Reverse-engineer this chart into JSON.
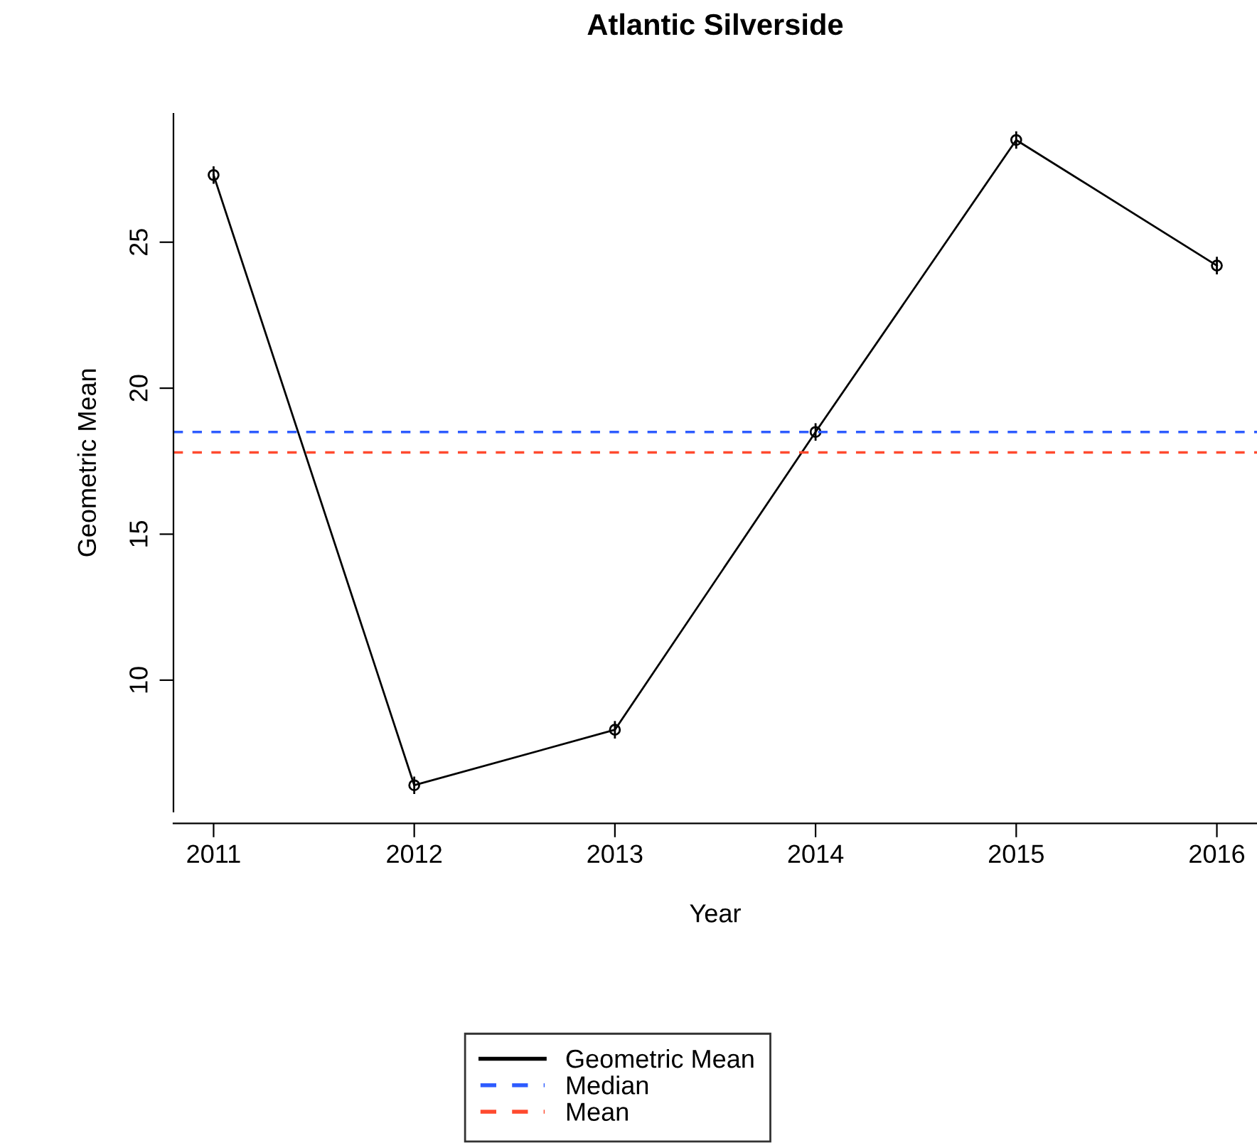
{
  "chart_data": {
    "type": "line",
    "title": "Atlantic Silverside",
    "xlabel": "Year",
    "ylabel": "Geometric Mean",
    "x": [
      2011,
      2012,
      2013,
      2014,
      2015,
      2016
    ],
    "series": [
      {
        "name": "Geometric Mean",
        "color": "#000000",
        "values": [
          27.3,
          6.4,
          8.3,
          18.5,
          28.5,
          24.2
        ],
        "errors": [
          0.3,
          0.3,
          0.3,
          0.3,
          0.3,
          0.3
        ]
      }
    ],
    "xlim": [
      2010.8,
      2016.2
    ],
    "xticks": [
      2011,
      2012,
      2013,
      2014,
      2015,
      2016
    ],
    "ylim": [
      5.5,
      29.4
    ],
    "yticks": [
      10,
      15,
      20,
      25
    ],
    "ref_lines": [
      {
        "axis": "y",
        "value": 18.5,
        "label": "Median",
        "color": "#2e5cff",
        "line_style": "dashed"
      },
      {
        "axis": "y",
        "value": 17.8,
        "label": "Mean",
        "color": "#ff4a2e",
        "line_style": "dashed"
      }
    ],
    "marker": "circle",
    "line_style": "solid",
    "grid": false,
    "legend": "bottom"
  }
}
